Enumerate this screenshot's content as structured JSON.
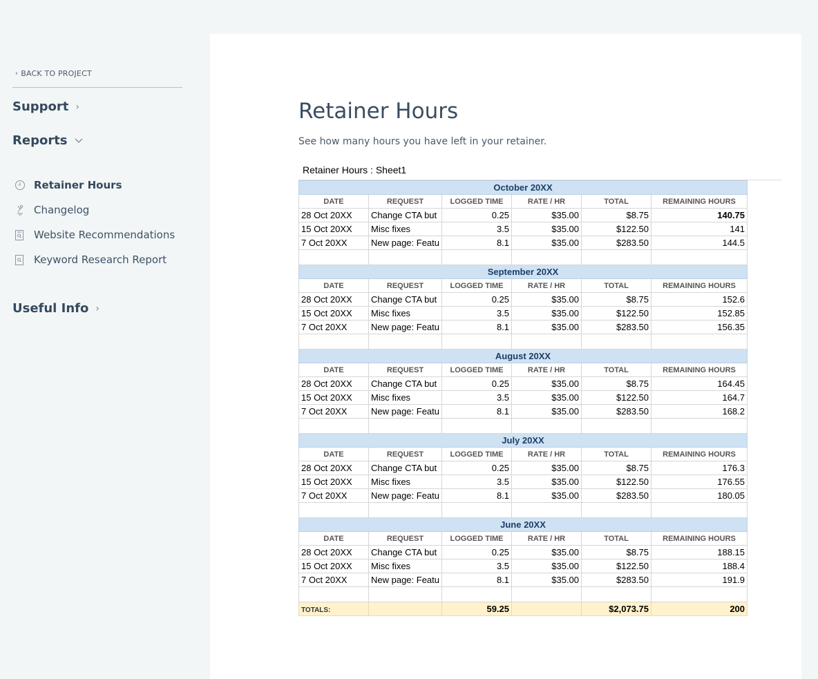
{
  "sidebar": {
    "back_label": "BACK TO PROJECT",
    "support_label": "Support",
    "reports_label": "Reports",
    "useful_label": "Useful Info",
    "items": [
      {
        "label": "Retainer Hours",
        "icon": "clock-icon"
      },
      {
        "label": "Changelog",
        "icon": "changelog-icon"
      },
      {
        "label": "Website Recommendations",
        "icon": "document-search-icon"
      },
      {
        "label": "Keyword Research Report",
        "icon": "document-search-icon"
      }
    ]
  },
  "main": {
    "title": "Retainer Hours",
    "subtitle": "See how many hours you have left in your retainer.",
    "sheet_name": "Retainer Hours : Sheet1",
    "headers": [
      "DATE",
      "REQUEST",
      "LOGGED TIME",
      "RATE / HR",
      "TOTAL",
      "REMAINING HOURS"
    ],
    "months": [
      {
        "name": "October 20XX",
        "rows": [
          [
            "28 Oct 20XX",
            "Change CTA but",
            "0.25",
            "$35.00",
            "$8.75",
            "140.75"
          ],
          [
            "15 Oct 20XX",
            "Misc fixes",
            "3.5",
            "$35.00",
            "$122.50",
            "141"
          ],
          [
            "7 Oct 20XX",
            "New page: Featu",
            "8.1",
            "$35.00",
            "$283.50",
            "144.5"
          ]
        ]
      },
      {
        "name": "September 20XX",
        "rows": [
          [
            "28 Oct 20XX",
            "Change CTA but",
            "0.25",
            "$35.00",
            "$8.75",
            "152.6"
          ],
          [
            "15 Oct 20XX",
            "Misc fixes",
            "3.5",
            "$35.00",
            "$122.50",
            "152.85"
          ],
          [
            "7 Oct 20XX",
            "New page: Featu",
            "8.1",
            "$35.00",
            "$283.50",
            "156.35"
          ]
        ]
      },
      {
        "name": "August 20XX",
        "rows": [
          [
            "28 Oct 20XX",
            "Change CTA but",
            "0.25",
            "$35.00",
            "$8.75",
            "164.45"
          ],
          [
            "15 Oct 20XX",
            "Misc fixes",
            "3.5",
            "$35.00",
            "$122.50",
            "164.7"
          ],
          [
            "7 Oct 20XX",
            "New page: Featu",
            "8.1",
            "$35.00",
            "$283.50",
            "168.2"
          ]
        ]
      },
      {
        "name": "July 20XX",
        "rows": [
          [
            "28 Oct 20XX",
            "Change CTA but",
            "0.25",
            "$35.00",
            "$8.75",
            "176.3"
          ],
          [
            "15 Oct 20XX",
            "Misc fixes",
            "3.5",
            "$35.00",
            "$122.50",
            "176.55"
          ],
          [
            "7 Oct 20XX",
            "New page: Featu",
            "8.1",
            "$35.00",
            "$283.50",
            "180.05"
          ]
        ]
      },
      {
        "name": "June 20XX",
        "rows": [
          [
            "28 Oct 20XX",
            "Change CTA but",
            "0.25",
            "$35.00",
            "$8.75",
            "188.15"
          ],
          [
            "15 Oct 20XX",
            "Misc fixes",
            "3.5",
            "$35.00",
            "$122.50",
            "188.4"
          ],
          [
            "7 Oct 20XX",
            "New page: Featu",
            "8.1",
            "$35.00",
            "$283.50",
            "191.9"
          ]
        ]
      }
    ],
    "totals": {
      "label": "TOTALS:",
      "logged": "59.25",
      "total": "$2,073.75",
      "remaining": "200"
    }
  }
}
